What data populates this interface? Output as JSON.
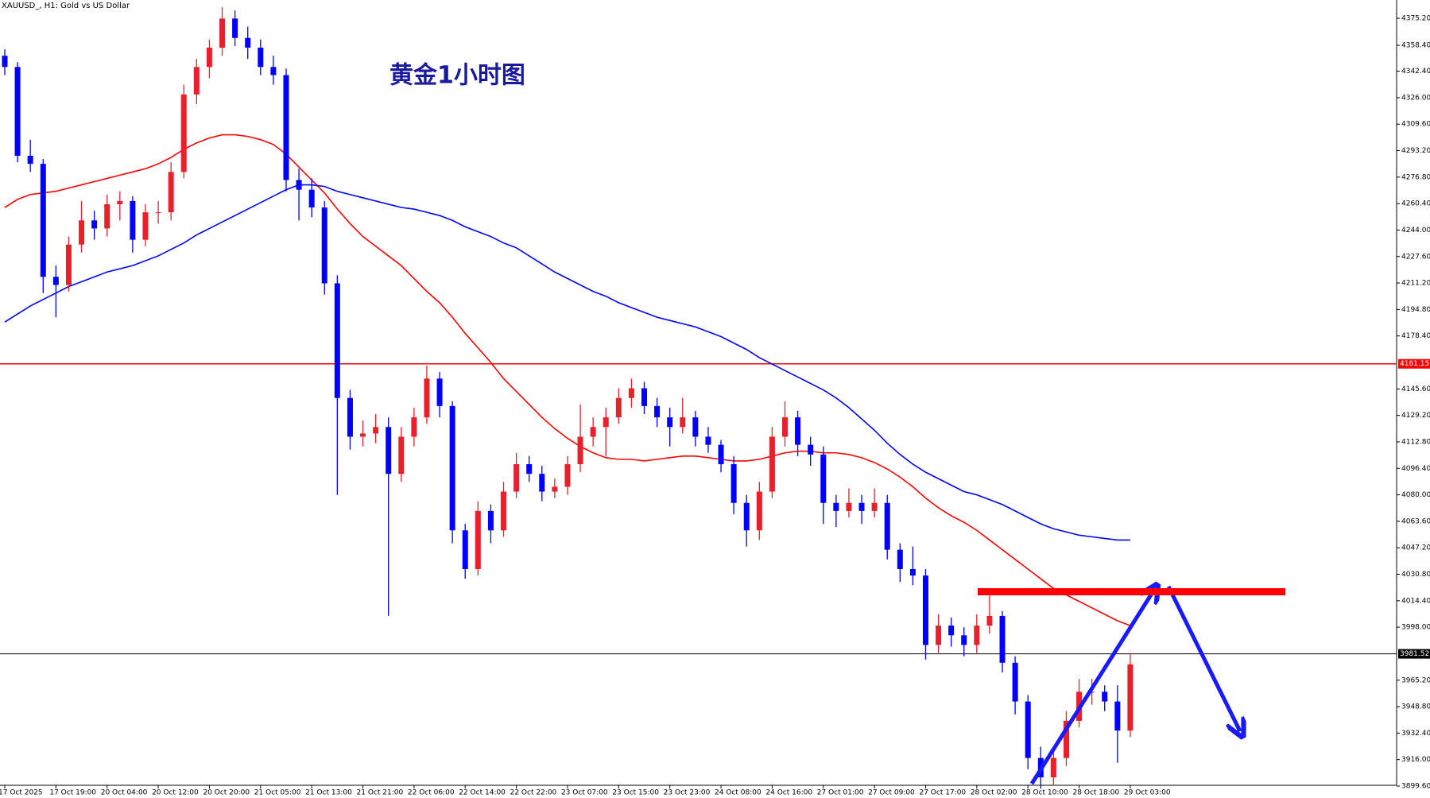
{
  "chart_data": {
    "type": "candlestick",
    "header": "XAUUSD_, H1:  Gold vs US Dollar",
    "title": "黄金1小时图",
    "up_color": "#e8202a",
    "down_color": "#0000ff",
    "categories": [
      "17 Oct 2025",
      null,
      null,
      null,
      "17 Oct 19:00",
      null,
      null,
      null,
      "20 Oct 04:00",
      null,
      null,
      null,
      "20 Oct 12:00",
      null,
      null,
      null,
      "20 Oct 20:00",
      null,
      null,
      null,
      "21 Oct 05:00",
      null,
      null,
      null,
      "21 Oct 13:00",
      null,
      null,
      null,
      "21 Oct 21:00",
      null,
      null,
      null,
      "22 Oct 06:00",
      null,
      null,
      null,
      "22 Oct 14:00",
      null,
      null,
      null,
      "22 Oct 22:00",
      null,
      null,
      null,
      "23 Oct 07:00",
      null,
      null,
      null,
      "23 Oct 15:00",
      null,
      null,
      null,
      "23 Oct 23:00",
      null,
      null,
      null,
      "24 Oct 08:00",
      null,
      null,
      null,
      "24 Oct 16:00",
      null,
      null,
      null,
      "27 Oct 01:00",
      null,
      null,
      null,
      "27 Oct 09:00",
      null,
      null,
      null,
      "27 Oct 17:00",
      null,
      null,
      null,
      "28 Oct 02:00",
      null,
      null,
      null,
      "28 Oct 10:00",
      null,
      null,
      null,
      "28 Oct 18:00",
      null,
      null,
      null,
      "29 Oct 03:00"
    ],
    "ohlc": [
      [
        4352,
        4356,
        4340,
        4345
      ],
      [
        4345,
        4348,
        4286,
        4290
      ],
      [
        4290,
        4300,
        4280,
        4285
      ],
      [
        4285,
        4288,
        4205,
        4215
      ],
      [
        4215,
        4222,
        4190,
        4210
      ],
      [
        4210,
        4240,
        4206,
        4235
      ],
      [
        4235,
        4262,
        4230,
        4250
      ],
      [
        4250,
        4256,
        4238,
        4245
      ],
      [
        4245,
        4266,
        4240,
        4260
      ],
      [
        4260,
        4268,
        4250,
        4262
      ],
      [
        4262,
        4265,
        4230,
        4238
      ],
      [
        4238,
        4260,
        4234,
        4255
      ],
      [
        4255,
        4262,
        4248,
        4255
      ],
      [
        4255,
        4286,
        4250,
        4280
      ],
      [
        4280,
        4334,
        4276,
        4328
      ],
      [
        4328,
        4350,
        4322,
        4345
      ],
      [
        4345,
        4362,
        4338,
        4357
      ],
      [
        4357,
        4382,
        4352,
        4375
      ],
      [
        4375,
        4380,
        4358,
        4363
      ],
      [
        4363,
        4370,
        4350,
        4357
      ],
      [
        4357,
        4362,
        4340,
        4345
      ],
      [
        4345,
        4352,
        4334,
        4340
      ],
      [
        4340,
        4344,
        4268,
        4275
      ],
      [
        4275,
        4282,
        4250,
        4269
      ],
      [
        4269,
        4276,
        4252,
        4258
      ],
      [
        4258,
        4262,
        4204,
        4211
      ],
      [
        4211,
        4216,
        4080,
        4140
      ],
      [
        4140,
        4145,
        4108,
        4116
      ],
      [
        4116,
        4126,
        4110,
        4118
      ],
      [
        4118,
        4130,
        4112,
        4122
      ],
      [
        4122,
        4128,
        4005,
        4093
      ],
      [
        4093,
        4122,
        4088,
        4116
      ],
      [
        4116,
        4134,
        4110,
        4128
      ],
      [
        4128,
        4160,
        4124,
        4152
      ],
      [
        4152,
        4156,
        4128,
        4135
      ],
      [
        4135,
        4138,
        4050,
        4058
      ],
      [
        4058,
        4062,
        4028,
        4034
      ],
      [
        4034,
        4076,
        4030,
        4070
      ],
      [
        4070,
        4074,
        4050,
        4058
      ],
      [
        4058,
        4088,
        4054,
        4082
      ],
      [
        4082,
        4106,
        4078,
        4099
      ],
      [
        4099,
        4104,
        4088,
        4093
      ],
      [
        4093,
        4098,
        4076,
        4082
      ],
      [
        4082,
        4090,
        4078,
        4085
      ],
      [
        4085,
        4104,
        4080,
        4099
      ],
      [
        4099,
        4136,
        4094,
        4116
      ],
      [
        4116,
        4128,
        4110,
        4122
      ],
      [
        4122,
        4134,
        4104,
        4128
      ],
      [
        4128,
        4146,
        4124,
        4140
      ],
      [
        4140,
        4152,
        4134,
        4146
      ],
      [
        4146,
        4150,
        4130,
        4135
      ],
      [
        4135,
        4140,
        4122,
        4128
      ],
      [
        4128,
        4134,
        4110,
        4122
      ],
      [
        4122,
        4140,
        4118,
        4128
      ],
      [
        4128,
        4132,
        4110,
        4116
      ],
      [
        4116,
        4122,
        4106,
        4111
      ],
      [
        4111,
        4114,
        4094,
        4099
      ],
      [
        4099,
        4104,
        4068,
        4075
      ],
      [
        4075,
        4080,
        4048,
        4058
      ],
      [
        4058,
        4088,
        4052,
        4082
      ],
      [
        4082,
        4122,
        4078,
        4116
      ],
      [
        4116,
        4138,
        4110,
        4128
      ],
      [
        4128,
        4132,
        4104,
        4111
      ],
      [
        4111,
        4116,
        4098,
        4105
      ],
      [
        4105,
        4110,
        4062,
        4075
      ],
      [
        4075,
        4080,
        4060,
        4070
      ],
      [
        4070,
        4084,
        4066,
        4075
      ],
      [
        4075,
        4080,
        4062,
        4070
      ],
      [
        4070,
        4084,
        4066,
        4075
      ],
      [
        4075,
        4080,
        4040,
        4046
      ],
      [
        4046,
        4050,
        4026,
        4034
      ],
      [
        4034,
        4048,
        4024,
        4030
      ],
      [
        4030,
        4034,
        3978,
        3987
      ],
      [
        3987,
        4006,
        3982,
        3999
      ],
      [
        3999,
        4004,
        3986,
        3993
      ],
      [
        3993,
        3998,
        3980,
        3987
      ],
      [
        3987,
        4006,
        3982,
        3999
      ],
      [
        3999,
        4018,
        3994,
        4005
      ],
      [
        4005,
        4008,
        3970,
        3976
      ],
      [
        3976,
        3980,
        3944,
        3952
      ],
      [
        3952,
        3956,
        3910,
        3917
      ],
      [
        3917,
        3924,
        3898,
        3905
      ],
      [
        3905,
        3924,
        3900,
        3917
      ],
      [
        3917,
        3946,
        3912,
        3940
      ],
      [
        3940,
        3966,
        3936,
        3958
      ],
      [
        3958,
        3966,
        3950,
        3958
      ],
      [
        3958,
        3962,
        3946,
        3952
      ],
      [
        3952,
        3962,
        3914,
        3934
      ],
      [
        3934,
        3982,
        3930,
        3975
      ]
    ],
    "lines": [
      {
        "color": "#ff0000",
        "values": [
          4258,
          4263,
          4266,
          4267,
          4268,
          4270,
          4272,
          4274,
          4276,
          4278,
          4280,
          4282,
          4285,
          4289,
          4294,
          4298,
          4301,
          4303,
          4303,
          4302,
          4300,
          4297,
          4291,
          4283,
          4275,
          4267,
          4257,
          4248,
          4240,
          4234,
          4228,
          4222,
          4214,
          4206,
          4199,
          4190,
          4180,
          4171,
          4162,
          4152,
          4144,
          4136,
          4128,
          4121,
          4115,
          4110,
          4106,
          4103,
          4102,
          4102,
          4101,
          4102,
          4103,
          4104,
          4104,
          4103,
          4102,
          4101,
          4101,
          4102,
          4104,
          4106,
          4107,
          4107,
          4106,
          4106,
          4105,
          4103,
          4100,
          4096,
          4091,
          4085,
          4078,
          4072,
          4067,
          4063,
          4058,
          4052,
          4046,
          4040,
          4034,
          4028,
          4022,
          4018,
          4014,
          4010,
          4006,
          4002,
          3999
        ]
      },
      {
        "color": "#0000ff",
        "values": [
          4187,
          4192,
          4197,
          4201,
          4205,
          4209,
          4212,
          4215,
          4218,
          4220,
          4222,
          4225,
          4228,
          4232,
          4236,
          4241,
          4245,
          4249,
          4253,
          4257,
          4261,
          4265,
          4269,
          4272,
          4272,
          4271,
          4268,
          4266,
          4264,
          4262,
          4260,
          4258,
          4257,
          4255,
          4253,
          4250,
          4246,
          4243,
          4240,
          4236,
          4233,
          4228,
          4223,
          4218,
          4214,
          4210,
          4206,
          4203,
          4199,
          4196,
          4193,
          4190,
          4188,
          4186,
          4184,
          4181,
          4178,
          4174,
          4170,
          4165,
          4161,
          4157,
          4153,
          4149,
          4145,
          4140,
          4134,
          4127,
          4120,
          4112,
          4105,
          4099,
          4094,
          4090,
          4086,
          4082,
          4080,
          4077,
          4074,
          4070,
          4066,
          4062,
          4059,
          4057,
          4055,
          4054,
          4053,
          4052,
          4052
        ]
      }
    ],
    "hlines": [
      {
        "value": 4161.15,
        "label": "4161.15",
        "color": "#ff0000"
      },
      {
        "value": 3981.52,
        "label": "3981.52",
        "color": "#000000"
      }
    ],
    "resistance": {
      "value": 4020,
      "color": "#ff0000"
    },
    "ylim": [
      3899.6,
      4386.5
    ],
    "yticks": [
      {
        "value": 4375.2,
        "label": "4375.20"
      },
      {
        "value": 4358.4,
        "label": "4358.40"
      },
      {
        "value": 4342.4,
        "label": "4342.40"
      },
      {
        "value": 4326,
        "label": "4326.00"
      },
      {
        "value": 4309.6,
        "label": "4309.60"
      },
      {
        "value": 4293.2,
        "label": "4293.20"
      },
      {
        "value": 4276.8,
        "label": "4276.80"
      },
      {
        "value": 4260.4,
        "label": "4260.40"
      },
      {
        "value": 4244,
        "label": "4244.00"
      },
      {
        "value": 4227.6,
        "label": "4227.60"
      },
      {
        "value": 4211.2,
        "label": "4211.20"
      },
      {
        "value": 4194.8,
        "label": "4194.80"
      },
      {
        "value": 4178.4,
        "label": "4178.40"
      },
      {
        "value": 4145.6,
        "label": "4145.60"
      },
      {
        "value": 4129.2,
        "label": "4129.20"
      },
      {
        "value": 4112.8,
        "label": "4112.80"
      },
      {
        "value": 4096.4,
        "label": "4096.40"
      },
      {
        "value": 4080,
        "label": "4080.00"
      },
      {
        "value": 4063.6,
        "label": "4063.60"
      },
      {
        "value": 4047.2,
        "label": "4047.20"
      },
      {
        "value": 4030.8,
        "label": "4030.80"
      },
      {
        "value": 4014.4,
        "label": "4014.40"
      },
      {
        "value": 3998,
        "label": "3998.00"
      },
      {
        "value": 3965.2,
        "label": "3965.20"
      },
      {
        "value": 3948.8,
        "label": "3948.80"
      },
      {
        "value": 3932.4,
        "label": "3932.40"
      },
      {
        "value": 3916,
        "label": "3916.00"
      },
      {
        "value": 3899.6,
        "label": "3899.60"
      }
    ]
  }
}
